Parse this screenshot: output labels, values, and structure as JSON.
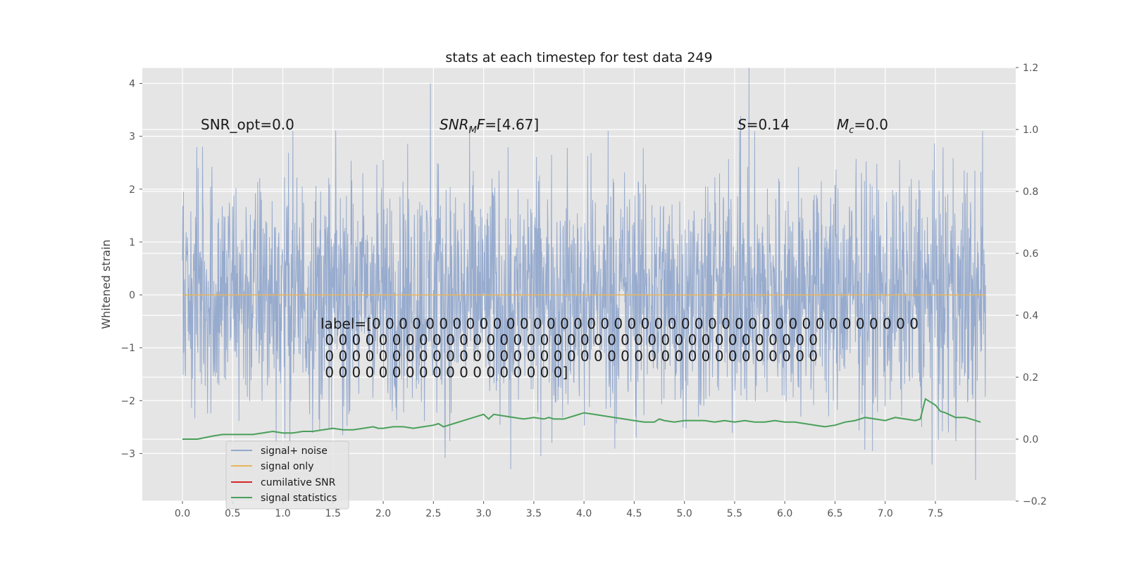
{
  "chart_data": {
    "type": "line",
    "title": "stats at each timestep for test data 249",
    "ylabel": "Whitened strain",
    "y2label": "",
    "xlim": [
      -0.4,
      8.3
    ],
    "ylim": [
      -3.9,
      4.3
    ],
    "y2lim": [
      -0.2,
      1.2
    ],
    "x_ticks": [
      "0.0",
      "0.5",
      "1.0",
      "1.5",
      "2.0",
      "2.5",
      "3.0",
      "3.5",
      "4.0",
      "4.5",
      "5.0",
      "5.5",
      "6.0",
      "6.5",
      "7.0",
      "7.5"
    ],
    "y_ticks": [
      "4",
      "3",
      "2",
      "1",
      "0",
      "−1",
      "−2",
      "−3"
    ],
    "y2_ticks": [
      "1.2",
      "1.0",
      "0.8",
      "0.6",
      "0.4",
      "0.2",
      "0.0",
      "−0.2"
    ],
    "grid": true,
    "legend_position": "lower-left",
    "background_color": "#e5e5e5",
    "annotations": {
      "snr_opt": "SNR_opt=0.0",
      "snr_mf_base": "SNR",
      "snr_mf_sub": "M",
      "snr_mf_rest": "F=[4.67]",
      "s_var": "S",
      "s_rest": "=0.14",
      "mc_var": "M",
      "mc_sub": "c",
      "mc_rest": "=0.0",
      "label_lines": [
        "label=[0 0 0 0 0 0 0 0 0 0 0 0 0 0 0 0 0 0 0 0 0 0 0 0 0 0 0 0 0 0 0 0 0 0 0 0 0 0 0 0 0",
        " 0 0 0 0 0 0 0 0 0 0 0 0 0 0 0 0 0 0 0 0 0 0 0 0 0 0 0 0 0 0 0 0 0 0 0 0 0",
        " 0 0 0 0 0 0 0 0 0 0 0 0 0 0 0 0 0 0 0 0 0 0 0 0 0 0 0 0 0 0 0 0 0 0 0 0 0",
        " 0 0 0 0 0 0 0 0 0 0 0 0 0 0 0 0 0 0]"
      ]
    },
    "series": [
      {
        "name": "signal+ noise",
        "color": "#92a8cc",
        "axis": "left",
        "x_range": [
          0.0,
          8.0
        ],
        "typical_amplitude": 1.8,
        "peak_points": [
          [
            0.2,
            2.8
          ],
          [
            1.1,
            3.1
          ],
          [
            2.47,
            4.0
          ],
          [
            3.27,
            -3.3
          ],
          [
            4.24,
            3.1
          ],
          [
            4.52,
            -2.7
          ],
          [
            5.55,
            3.1
          ],
          [
            7.63,
            -2.6
          ],
          [
            7.9,
            -3.5
          ],
          [
            7.97,
            3.1
          ]
        ]
      },
      {
        "name": "signal only",
        "color": "#e8b55a",
        "axis": "left",
        "x": [
          0.0,
          8.0
        ],
        "y": [
          0.0,
          0.0
        ]
      },
      {
        "name": "cumilative SNR",
        "color": "#d62728",
        "axis": "right",
        "x": [],
        "y": []
      },
      {
        "name": "signal statistics",
        "color": "#4aa05a",
        "axis": "right",
        "x": [
          0.0,
          0.15,
          0.3,
          0.4,
          0.5,
          0.6,
          0.7,
          0.8,
          0.9,
          1.0,
          1.1,
          1.2,
          1.3,
          1.4,
          1.5,
          1.6,
          1.7,
          1.8,
          1.9,
          1.95,
          2.0,
          2.1,
          2.2,
          2.3,
          2.4,
          2.5,
          2.55,
          2.6,
          2.7,
          2.8,
          2.9,
          3.0,
          3.05,
          3.1,
          3.2,
          3.3,
          3.4,
          3.5,
          3.6,
          3.65,
          3.7,
          3.8,
          3.9,
          4.0,
          4.1,
          4.2,
          4.3,
          4.4,
          4.5,
          4.6,
          4.7,
          4.75,
          4.8,
          4.9,
          5.0,
          5.1,
          5.2,
          5.3,
          5.4,
          5.5,
          5.6,
          5.7,
          5.8,
          5.9,
          6.0,
          6.1,
          6.2,
          6.3,
          6.4,
          6.5,
          6.6,
          6.7,
          6.8,
          6.9,
          7.0,
          7.1,
          7.2,
          7.3,
          7.35,
          7.4,
          7.5,
          7.55,
          7.6,
          7.7,
          7.8,
          7.9,
          7.95
        ],
        "y": [
          0.0,
          0.0,
          0.01,
          0.015,
          0.015,
          0.015,
          0.015,
          0.02,
          0.025,
          0.02,
          0.02,
          0.025,
          0.025,
          0.03,
          0.035,
          0.03,
          0.03,
          0.035,
          0.04,
          0.035,
          0.035,
          0.04,
          0.04,
          0.035,
          0.04,
          0.045,
          0.05,
          0.04,
          0.05,
          0.06,
          0.07,
          0.08,
          0.065,
          0.08,
          0.075,
          0.07,
          0.065,
          0.07,
          0.065,
          0.07,
          0.065,
          0.065,
          0.075,
          0.085,
          0.08,
          0.075,
          0.07,
          0.065,
          0.06,
          0.055,
          0.055,
          0.065,
          0.06,
          0.055,
          0.06,
          0.06,
          0.06,
          0.055,
          0.06,
          0.055,
          0.06,
          0.055,
          0.055,
          0.06,
          0.055,
          0.055,
          0.05,
          0.045,
          0.04,
          0.045,
          0.055,
          0.06,
          0.07,
          0.065,
          0.06,
          0.07,
          0.065,
          0.06,
          0.065,
          0.13,
          0.11,
          0.09,
          0.085,
          0.07,
          0.07,
          0.06,
          0.055
        ]
      }
    ]
  }
}
